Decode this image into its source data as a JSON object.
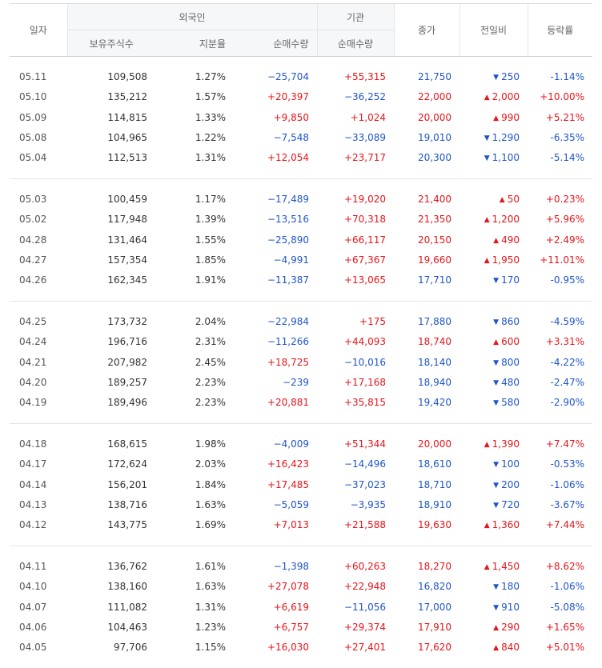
{
  "headers": {
    "date": "일자",
    "foreign": "외국인",
    "institution": "기관",
    "holdings": "보유주식수",
    "ratio": "지분율",
    "foreign_net": "순매수량",
    "institution_net": "순매수량",
    "close": "종가",
    "change": "전일비",
    "change_pct": "등락률"
  },
  "groups": [
    [
      {
        "date": "05.11",
        "holdings": "109,508",
        "ratio": "1.27%",
        "foreign_net": "−25,704",
        "institution_net": "+55,315",
        "close": "21,750",
        "dir": "down",
        "change": "250",
        "change_pct": "-1.14%"
      },
      {
        "date": "05.10",
        "holdings": "135,212",
        "ratio": "1.57%",
        "foreign_net": "+20,397",
        "institution_net": "−36,252",
        "close": "22,000",
        "dir": "up",
        "change": "2,000",
        "change_pct": "+10.00%"
      },
      {
        "date": "05.09",
        "holdings": "114,815",
        "ratio": "1.33%",
        "foreign_net": "+9,850",
        "institution_net": "+1,024",
        "close": "20,000",
        "dir": "up",
        "change": "990",
        "change_pct": "+5.21%"
      },
      {
        "date": "05.08",
        "holdings": "104,965",
        "ratio": "1.22%",
        "foreign_net": "−7,548",
        "institution_net": "−33,089",
        "close": "19,010",
        "dir": "down",
        "change": "1,290",
        "change_pct": "-6.35%"
      },
      {
        "date": "05.04",
        "holdings": "112,513",
        "ratio": "1.31%",
        "foreign_net": "+12,054",
        "institution_net": "+23,717",
        "close": "20,300",
        "dir": "down",
        "change": "1,100",
        "change_pct": "-5.14%"
      }
    ],
    [
      {
        "date": "05.03",
        "holdings": "100,459",
        "ratio": "1.17%",
        "foreign_net": "−17,489",
        "institution_net": "+19,020",
        "close": "21,400",
        "dir": "up",
        "change": "50",
        "change_pct": "+0.23%"
      },
      {
        "date": "05.02",
        "holdings": "117,948",
        "ratio": "1.39%",
        "foreign_net": "−13,516",
        "institution_net": "+70,318",
        "close": "21,350",
        "dir": "up",
        "change": "1,200",
        "change_pct": "+5.96%"
      },
      {
        "date": "04.28",
        "holdings": "131,464",
        "ratio": "1.55%",
        "foreign_net": "−25,890",
        "institution_net": "+66,117",
        "close": "20,150",
        "dir": "up",
        "change": "490",
        "change_pct": "+2.49%"
      },
      {
        "date": "04.27",
        "holdings": "157,354",
        "ratio": "1.85%",
        "foreign_net": "−4,991",
        "institution_net": "+67,367",
        "close": "19,660",
        "dir": "up",
        "change": "1,950",
        "change_pct": "+11.01%"
      },
      {
        "date": "04.26",
        "holdings": "162,345",
        "ratio": "1.91%",
        "foreign_net": "−11,387",
        "institution_net": "+13,065",
        "close": "17,710",
        "dir": "down",
        "change": "170",
        "change_pct": "-0.95%"
      }
    ],
    [
      {
        "date": "04.25",
        "holdings": "173,732",
        "ratio": "2.04%",
        "foreign_net": "−22,984",
        "institution_net": "+175",
        "close": "17,880",
        "dir": "down",
        "change": "860",
        "change_pct": "-4.59%"
      },
      {
        "date": "04.24",
        "holdings": "196,716",
        "ratio": "2.31%",
        "foreign_net": "−11,266",
        "institution_net": "+44,093",
        "close": "18,740",
        "dir": "up",
        "change": "600",
        "change_pct": "+3.31%"
      },
      {
        "date": "04.21",
        "holdings": "207,982",
        "ratio": "2.45%",
        "foreign_net": "+18,725",
        "institution_net": "−10,016",
        "close": "18,140",
        "dir": "down",
        "change": "800",
        "change_pct": "-4.22%"
      },
      {
        "date": "04.20",
        "holdings": "189,257",
        "ratio": "2.23%",
        "foreign_net": "−239",
        "institution_net": "+17,168",
        "close": "18,940",
        "dir": "down",
        "change": "480",
        "change_pct": "-2.47%"
      },
      {
        "date": "04.19",
        "holdings": "189,496",
        "ratio": "2.23%",
        "foreign_net": "+20,881",
        "institution_net": "+35,815",
        "close": "19,420",
        "dir": "down",
        "change": "580",
        "change_pct": "-2.90%"
      }
    ],
    [
      {
        "date": "04.18",
        "holdings": "168,615",
        "ratio": "1.98%",
        "foreign_net": "−4,009",
        "institution_net": "+51,344",
        "close": "20,000",
        "dir": "up",
        "change": "1,390",
        "change_pct": "+7.47%"
      },
      {
        "date": "04.17",
        "holdings": "172,624",
        "ratio": "2.03%",
        "foreign_net": "+16,423",
        "institution_net": "−14,496",
        "close": "18,610",
        "dir": "down",
        "change": "100",
        "change_pct": "-0.53%"
      },
      {
        "date": "04.14",
        "holdings": "156,201",
        "ratio": "1.84%",
        "foreign_net": "+17,485",
        "institution_net": "−37,023",
        "close": "18,710",
        "dir": "down",
        "change": "200",
        "change_pct": "-1.06%"
      },
      {
        "date": "04.13",
        "holdings": "138,716",
        "ratio": "1.63%",
        "foreign_net": "−5,059",
        "institution_net": "−3,935",
        "close": "18,910",
        "dir": "down",
        "change": "720",
        "change_pct": "-3.67%"
      },
      {
        "date": "04.12",
        "holdings": "143,775",
        "ratio": "1.69%",
        "foreign_net": "+7,013",
        "institution_net": "+21,588",
        "close": "19,630",
        "dir": "up",
        "change": "1,360",
        "change_pct": "+7.44%"
      }
    ],
    [
      {
        "date": "04.11",
        "holdings": "136,762",
        "ratio": "1.61%",
        "foreign_net": "−1,398",
        "institution_net": "+60,263",
        "close": "18,270",
        "dir": "up",
        "change": "1,450",
        "change_pct": "+8.62%"
      },
      {
        "date": "04.10",
        "holdings": "138,160",
        "ratio": "1.63%",
        "foreign_net": "+27,078",
        "institution_net": "+22,948",
        "close": "16,820",
        "dir": "down",
        "change": "180",
        "change_pct": "-1.06%"
      },
      {
        "date": "04.07",
        "holdings": "111,082",
        "ratio": "1.31%",
        "foreign_net": "+6,619",
        "institution_net": "−11,056",
        "close": "17,000",
        "dir": "down",
        "change": "910",
        "change_pct": "-5.08%"
      },
      {
        "date": "04.06",
        "holdings": "104,463",
        "ratio": "1.23%",
        "foreign_net": "+6,757",
        "institution_net": "+29,374",
        "close": "17,910",
        "dir": "up",
        "change": "290",
        "change_pct": "+1.65%"
      },
      {
        "date": "04.05",
        "holdings": "97,706",
        "ratio": "1.15%",
        "foreign_net": "+16,030",
        "institution_net": "+27,401",
        "close": "17,620",
        "dir": "up",
        "change": "840",
        "change_pct": "+5.01%"
      }
    ]
  ],
  "colors": {
    "up": "#e8141a",
    "down": "#1f55c8"
  },
  "icons": {
    "up": "triangle-up-icon",
    "down": "triangle-down-icon"
  }
}
